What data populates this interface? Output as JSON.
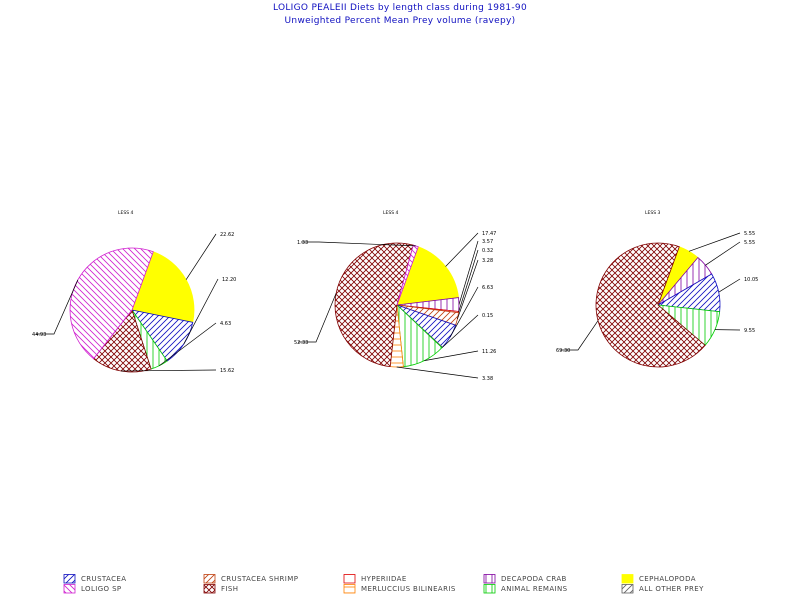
{
  "title": "LOLIGO PEALEII Diets by length class during 1981-90",
  "subtitle": "Unweighted Percent Mean Prey volume (ravepy)",
  "chart_data": [
    {
      "type": "pie",
      "label": "LESS 4",
      "slices": [
        {
          "category": "CEPHALOPODA",
          "value": 22.62,
          "label": "22.62"
        },
        {
          "category": "CRUSTACEA",
          "value": 12.2,
          "label": "12.20"
        },
        {
          "category": "ANIMAL REMAINS",
          "value": 4.63,
          "label": "4.63"
        },
        {
          "category": "FISH",
          "value": 15.62,
          "label": "15.62"
        },
        {
          "category": "LOLIGO SP",
          "value": 44.93,
          "label": "44.93"
        }
      ]
    },
    {
      "type": "pie",
      "label": "LESS 4",
      "slices": [
        {
          "category": "CEPHALOPODA",
          "value": 17.47,
          "label": "17.47"
        },
        {
          "category": "DECAPODA CRAB",
          "value": 3.57,
          "label": "3.57"
        },
        {
          "category": "HYPERIIDAE",
          "value": 0.32,
          "label": "0.32"
        },
        {
          "category": "CRUSTACEA SHRIMP",
          "value": 3.28,
          "label": "3.28"
        },
        {
          "category": "CRUSTACEA",
          "value": 6.63,
          "label": "6.63"
        },
        {
          "category": "ALL OTHER PREY",
          "value": 0.15,
          "label": "0.15"
        },
        {
          "category": "ANIMAL REMAINS",
          "value": 11.26,
          "label": "11.26"
        },
        {
          "category": "MERLUCCIUS BILINEARIS",
          "value": 3.38,
          "label": "3.38"
        },
        {
          "category": "FISH",
          "value": 52.33,
          "label": "52.33"
        },
        {
          "category": "LOLIGO SP",
          "value": 1.33,
          "label": "1.33"
        }
      ]
    },
    {
      "type": "pie",
      "label": "LESS 3",
      "slices": [
        {
          "category": "CEPHALOPODA",
          "value": 5.55,
          "label": "5.55"
        },
        {
          "category": "DECAPODA CRAB",
          "value": 5.55,
          "label": "5.55"
        },
        {
          "category": "CRUSTACEA",
          "value": 10.05,
          "label": "10.05"
        },
        {
          "category": "ANIMAL REMAINS",
          "value": 9.55,
          "label": "9.55"
        },
        {
          "category": "FISH",
          "value": 69.3,
          "label": "69.30"
        }
      ]
    }
  ],
  "legend": [
    {
      "name": "CRUSTACEA",
      "color": "#1010c0",
      "pattern": "diag-up"
    },
    {
      "name": "LOLIGO SP",
      "color": "#d020d0",
      "pattern": "diag-down"
    },
    {
      "name": "CRUSTACEA SHRIMP",
      "color": "#c04010",
      "pattern": "diag-up"
    },
    {
      "name": "FISH",
      "color": "#800000",
      "pattern": "cross"
    },
    {
      "name": "HYPERIIDAE",
      "color": "#e00000",
      "pattern": "solid-empty"
    },
    {
      "name": "MERLUCCIUS BILINEARIS",
      "color": "#ff8000",
      "pattern": "horizontal"
    },
    {
      "name": "DECAPODA CRAB",
      "color": "#8000a0",
      "pattern": "vertical"
    },
    {
      "name": "ANIMAL REMAINS",
      "color": "#00cc00",
      "pattern": "vertical"
    },
    {
      "name": "CEPHALOPODA",
      "color": "#ffff00",
      "pattern": "solid"
    },
    {
      "name": "ALL OTHER PREY",
      "color": "#606060",
      "pattern": "diag-up"
    }
  ]
}
